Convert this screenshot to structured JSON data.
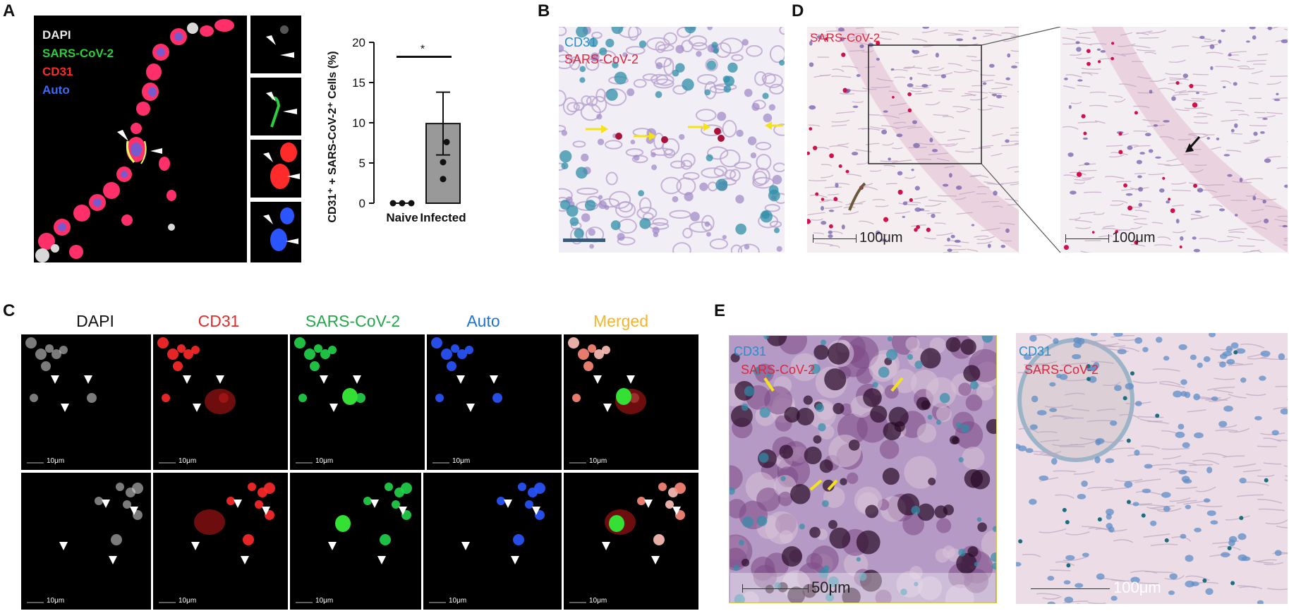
{
  "panels": {
    "A": "A",
    "B": "B",
    "C": "C",
    "D": "D",
    "E": "E"
  },
  "panelA": {
    "legend": [
      {
        "text": "DAPI",
        "color": "#e8e8e8"
      },
      {
        "text": "SARS-CoV-2",
        "color": "#2ecc40"
      },
      {
        "text": "CD31",
        "color": "#ff2a2a"
      },
      {
        "text": "Auto",
        "color": "#3a6bff"
      }
    ]
  },
  "chart_data": {
    "type": "bar",
    "categories": [
      "Naive",
      "Infected"
    ],
    "values": [
      0,
      9.9
    ],
    "error": [
      0,
      3.9
    ],
    "points": {
      "Naive": [
        0,
        0,
        0
      ],
      "Infected": [
        7.6,
        5.1,
        3.0
      ]
    },
    "ylabel": "CD31⁺ + SARS-CoV-2⁺ Cells (%)",
    "ylim": [
      0,
      20
    ],
    "yticks": [
      "0",
      "5",
      "10",
      "15",
      "20"
    ],
    "significance": "*",
    "bar_color": "#999999"
  },
  "panelB": {
    "labels": [
      {
        "text": "CD31",
        "color": "#1f8fd6"
      },
      {
        "text": "SARS-CoV-2",
        "color": "#e0263e"
      }
    ]
  },
  "panelC": {
    "headers": [
      {
        "text": "DAPI",
        "color": "#111111"
      },
      {
        "text": "CD31",
        "color": "#e52b2b"
      },
      {
        "text": "SARS-CoV-2",
        "color": "#22a84a"
      },
      {
        "text": "Auto",
        "color": "#1f73d6"
      },
      {
        "text": "Merged",
        "color": "#f5b52a"
      }
    ],
    "scale": "10μm"
  },
  "panelD": {
    "label": {
      "text": "SARS-CoV-2",
      "color": "#e0263e"
    },
    "scale": "100μm"
  },
  "panelE": {
    "labels": [
      {
        "text": "CD31",
        "color": "#1f8fd6"
      },
      {
        "text": "SARS-CoV-2",
        "color": "#e0263e"
      }
    ],
    "scale_left": "50μm",
    "scale_right": "100μm"
  }
}
